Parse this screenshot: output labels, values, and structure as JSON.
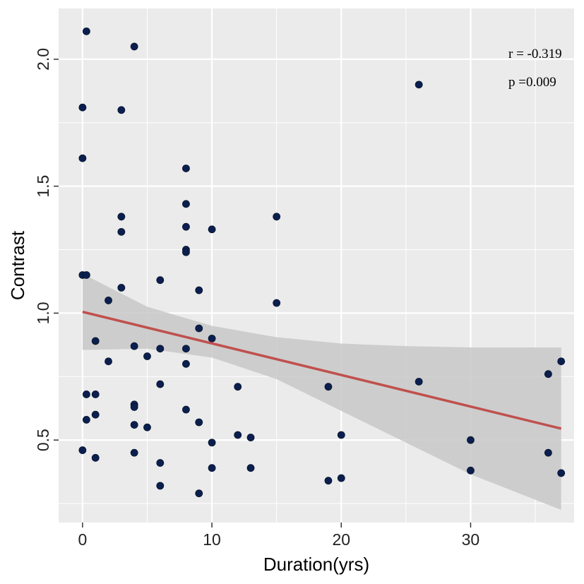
{
  "chart_data": {
    "type": "scatter",
    "title": "",
    "xlabel": "Duration(yrs)",
    "ylabel": "Contrast",
    "xlim": [
      -1.85,
      38.0
    ],
    "ylim": [
      0.175,
      2.2
    ],
    "x_ticks": [
      0,
      10,
      20,
      30
    ],
    "x_tick_labels": [
      "0",
      "10",
      "20",
      "30"
    ],
    "y_ticks": [
      0.5,
      1.0,
      1.5,
      2.0
    ],
    "y_tick_labels": [
      "0.5",
      "1.0",
      "1.5",
      "2.0"
    ],
    "grid": true,
    "background": "#ebebeb",
    "point_color": "#0b1f4f",
    "fit_line_color": "#c0504d",
    "band_color": "#c8c8c8",
    "annotations": [
      "r = -0.319",
      "p =0.009"
    ],
    "points": [
      {
        "x": 0.0,
        "y": 1.81
      },
      {
        "x": 0.0,
        "y": 1.61
      },
      {
        "x": 0.0,
        "y": 1.15
      },
      {
        "x": 0.0,
        "y": 0.46
      },
      {
        "x": 0.3,
        "y": 2.11
      },
      {
        "x": 0.3,
        "y": 1.15
      },
      {
        "x": 0.3,
        "y": 0.68
      },
      {
        "x": 0.3,
        "y": 0.58
      },
      {
        "x": 1.0,
        "y": 0.89
      },
      {
        "x": 1.0,
        "y": 0.68
      },
      {
        "x": 1.0,
        "y": 0.6
      },
      {
        "x": 1.0,
        "y": 0.43
      },
      {
        "x": 2.0,
        "y": 1.05
      },
      {
        "x": 2.0,
        "y": 0.81
      },
      {
        "x": 3.0,
        "y": 1.8
      },
      {
        "x": 3.0,
        "y": 1.38
      },
      {
        "x": 3.0,
        "y": 1.32
      },
      {
        "x": 3.0,
        "y": 1.1
      },
      {
        "x": 4.0,
        "y": 2.05
      },
      {
        "x": 4.0,
        "y": 0.87
      },
      {
        "x": 4.0,
        "y": 0.64
      },
      {
        "x": 4.0,
        "y": 0.63
      },
      {
        "x": 4.0,
        "y": 0.56
      },
      {
        "x": 4.0,
        "y": 0.45
      },
      {
        "x": 5.0,
        "y": 0.83
      },
      {
        "x": 5.0,
        "y": 0.55
      },
      {
        "x": 6.0,
        "y": 1.13
      },
      {
        "x": 6.0,
        "y": 0.86
      },
      {
        "x": 6.0,
        "y": 0.72
      },
      {
        "x": 6.0,
        "y": 0.41
      },
      {
        "x": 6.0,
        "y": 0.32
      },
      {
        "x": 8.0,
        "y": 1.57
      },
      {
        "x": 8.0,
        "y": 1.43
      },
      {
        "x": 8.0,
        "y": 1.34
      },
      {
        "x": 8.0,
        "y": 1.25
      },
      {
        "x": 8.0,
        "y": 1.24
      },
      {
        "x": 8.0,
        "y": 0.86
      },
      {
        "x": 8.0,
        "y": 0.8
      },
      {
        "x": 8.0,
        "y": 0.62
      },
      {
        "x": 9.0,
        "y": 1.09
      },
      {
        "x": 9.0,
        "y": 0.94
      },
      {
        "x": 9.0,
        "y": 0.57
      },
      {
        "x": 9.0,
        "y": 0.29
      },
      {
        "x": 10.0,
        "y": 1.33
      },
      {
        "x": 10.0,
        "y": 0.9
      },
      {
        "x": 10.0,
        "y": 0.49
      },
      {
        "x": 10.0,
        "y": 0.39
      },
      {
        "x": 12.0,
        "y": 0.71
      },
      {
        "x": 12.0,
        "y": 0.52
      },
      {
        "x": 13.0,
        "y": 0.51
      },
      {
        "x": 13.0,
        "y": 0.39
      },
      {
        "x": 15.0,
        "y": 1.38
      },
      {
        "x": 15.0,
        "y": 1.04
      },
      {
        "x": 19.0,
        "y": 0.71
      },
      {
        "x": 19.0,
        "y": 0.34
      },
      {
        "x": 20.0,
        "y": 0.52
      },
      {
        "x": 20.0,
        "y": 0.35
      },
      {
        "x": 26.0,
        "y": 1.9
      },
      {
        "x": 26.0,
        "y": 0.73
      },
      {
        "x": 30.0,
        "y": 0.5
      },
      {
        "x": 30.0,
        "y": 0.38
      },
      {
        "x": 36.0,
        "y": 0.76
      },
      {
        "x": 36.0,
        "y": 0.45
      },
      {
        "x": 37.0,
        "y": 0.81
      },
      {
        "x": 37.0,
        "y": 0.37
      }
    ],
    "fit_line": [
      {
        "x": 0.0,
        "y": 1.005
      },
      {
        "x": 37.0,
        "y": 0.545
      }
    ],
    "confidence_band": [
      {
        "x": 0.0,
        "lower": 0.855,
        "upper": 1.155
      },
      {
        "x": 5.0,
        "lower": 0.86,
        "upper": 1.025
      },
      {
        "x": 10.0,
        "lower": 0.825,
        "upper": 0.95
      },
      {
        "x": 15.0,
        "lower": 0.74,
        "upper": 0.905
      },
      {
        "x": 20.0,
        "lower": 0.615,
        "upper": 0.88
      },
      {
        "x": 25.0,
        "lower": 0.49,
        "upper": 0.87
      },
      {
        "x": 30.0,
        "lower": 0.365,
        "upper": 0.865
      },
      {
        "x": 37.0,
        "lower": 0.225,
        "upper": 0.865
      }
    ]
  }
}
